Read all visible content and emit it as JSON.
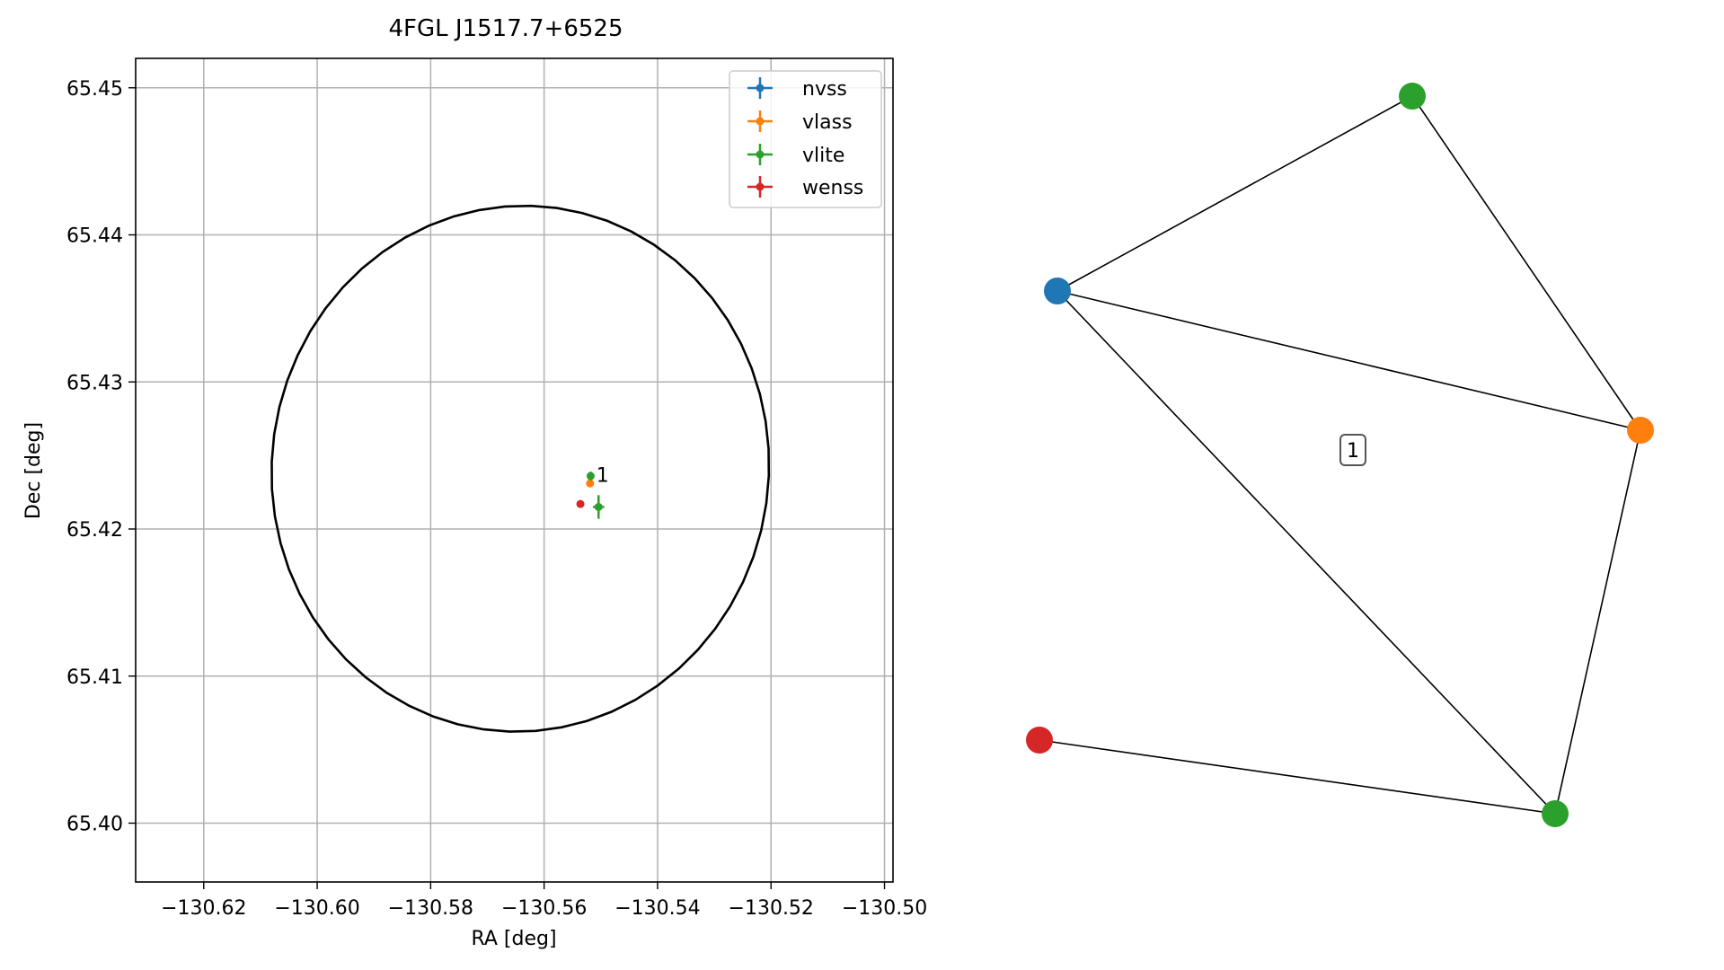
{
  "chart_data": [
    {
      "type": "scatter",
      "title": "4FGL J1517.7+6525",
      "xlabel": "RA [deg]",
      "ylabel": "Dec [deg]",
      "xlim": [
        -130.632,
        -130.4985
      ],
      "ylim": [
        65.396,
        65.452
      ],
      "xticks": [
        -130.62,
        -130.6,
        -130.58,
        -130.56,
        -130.54,
        -130.52,
        -130.5
      ],
      "xtick_labels": [
        "−130.62",
        "−130.60",
        "−130.58",
        "−130.56",
        "−130.54",
        "−130.52",
        "−130.50"
      ],
      "yticks": [
        65.4,
        65.41,
        65.42,
        65.43,
        65.44,
        65.45
      ],
      "ytick_labels": [
        "65.40",
        "65.41",
        "65.42",
        "65.43",
        "65.44",
        "65.45"
      ],
      "grid": true,
      "legend_position": "top-right",
      "ellipse": {
        "center": [
          -130.5642,
          65.4241
        ],
        "ra_radius": 0.0438,
        "dec_radius": 0.0179,
        "angle_deg": 8,
        "color": "#000000"
      },
      "series": [
        {
          "name": "nvss",
          "color": "#1f77b4",
          "points": []
        },
        {
          "name": "vlass",
          "color": "#ff7f0e",
          "points": [
            {
              "x": -130.5519,
              "y": 65.4231,
              "xerr": 0.0003,
              "yerr": 0.0002
            }
          ]
        },
        {
          "name": "vlite",
          "color": "#2ca02c",
          "points": [
            {
              "x": -130.5518,
              "y": 65.4236,
              "xerr": 0.0004,
              "yerr": 0.0003
            },
            {
              "x": -130.5504,
              "y": 65.4215,
              "xerr": 0.001,
              "yerr": 0.0008
            }
          ]
        },
        {
          "name": "wenss",
          "color": "#d62728",
          "points": [
            {
              "x": -130.5536,
              "y": 65.4217,
              "xerr": 0.0003,
              "yerr": 0.0002
            }
          ]
        }
      ],
      "annotations": [
        {
          "text": "1",
          "x": -130.5508,
          "y": 65.4237
        }
      ]
    },
    {
      "type": "network",
      "colors": [
        "#2ca02c",
        "#1f77b4",
        "#ff7f0e",
        "#2ca02c",
        "#d62728"
      ],
      "edges": [
        [
          1,
          0
        ],
        [
          1,
          2
        ],
        [
          1,
          3
        ],
        [
          0,
          2
        ],
        [
          2,
          3
        ],
        [
          4,
          3
        ]
      ],
      "labels": [
        "1"
      ]
    }
  ]
}
